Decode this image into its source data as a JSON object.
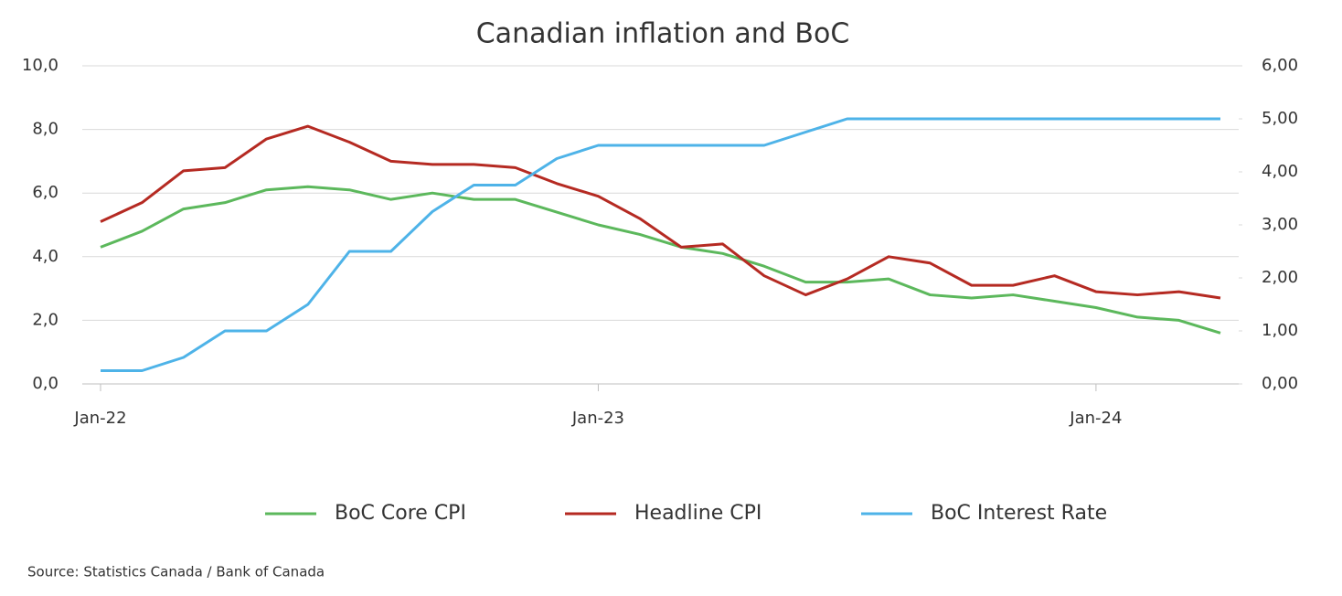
{
  "chart_data": {
    "type": "line",
    "title": "Canadian inflation and BoC",
    "source": "Source: Statistics Canada / Bank of Canada",
    "categories": [
      "Jan-22",
      null,
      null,
      null,
      null,
      null,
      null,
      null,
      null,
      null,
      null,
      null,
      "Jan-23",
      null,
      null,
      null,
      null,
      null,
      null,
      null,
      null,
      null,
      null,
      null,
      "Jan-24",
      null,
      null,
      null
    ],
    "series": [
      {
        "name": "BoC Core CPI",
        "color": "#5cb85c",
        "values": [
          4.3,
          4.8,
          5.5,
          5.7,
          6.1,
          6.2,
          6.1,
          5.8,
          6.0,
          5.8,
          5.8,
          5.4,
          5.0,
          4.7,
          4.3,
          4.1,
          3.7,
          3.2,
          3.2,
          3.3,
          2.8,
          2.7,
          2.8,
          2.6,
          2.4,
          2.1,
          2.0,
          1.6
        ]
      },
      {
        "name": "Headline CPI",
        "color": "#b52a22",
        "values": [
          5.1,
          5.7,
          6.7,
          6.8,
          7.7,
          8.1,
          7.6,
          7.0,
          6.9,
          6.9,
          6.8,
          6.3,
          5.9,
          5.2,
          4.3,
          4.4,
          3.4,
          2.8,
          3.3,
          4.0,
          3.8,
          3.1,
          3.1,
          3.4,
          2.9,
          2.8,
          2.9,
          2.7
        ]
      },
      {
        "name": "BoC Interest Rate",
        "color": "#4eb3e8",
        "axis": "y2",
        "values": [
          0.25,
          0.25,
          0.5,
          1.0,
          1.0,
          1.5,
          2.5,
          2.5,
          3.25,
          3.75,
          3.75,
          4.25,
          4.5,
          4.5,
          4.5,
          4.5,
          4.5,
          4.75,
          5.0,
          5.0,
          5.0,
          5.0,
          5.0,
          5.0,
          5.0,
          5.0,
          5.0,
          5.0
        ]
      }
    ],
    "ylim": [
      0,
      10
    ],
    "yticks": [
      {
        "value": 0,
        "label": "0,0"
      },
      {
        "value": 2,
        "label": "2,0"
      },
      {
        "value": 4,
        "label": "4,0"
      },
      {
        "value": 6,
        "label": "6,0"
      },
      {
        "value": 8,
        "label": "8,0"
      },
      {
        "value": 10,
        "label": "10,0"
      }
    ],
    "y2lim": [
      0,
      6
    ],
    "y2ticks": [
      {
        "value": 0,
        "label": "0,00"
      },
      {
        "value": 1,
        "label": "1,00"
      },
      {
        "value": 2,
        "label": "2,00"
      },
      {
        "value": 3,
        "label": "3,00"
      },
      {
        "value": 4,
        "label": "4,00"
      },
      {
        "value": 5,
        "label": "5,00"
      },
      {
        "value": 6,
        "label": "6,00"
      }
    ],
    "grid": true,
    "legend": "bottom"
  }
}
